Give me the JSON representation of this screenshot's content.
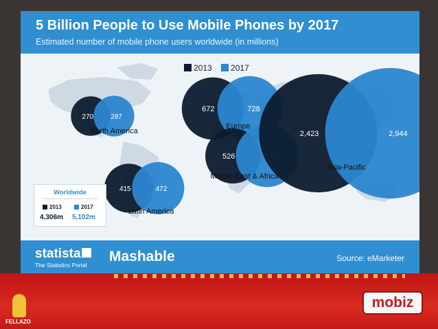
{
  "chart_data": {
    "type": "bubble",
    "title": "5 Billion People to Use Mobile Phones by 2017",
    "subtitle": "Estimated number of mobile phone users worldwide (in millions)",
    "series": [
      {
        "name": "2013",
        "color": "#0c1b2e"
      },
      {
        "name": "2017",
        "color": "#2b86cf"
      }
    ],
    "regions": [
      {
        "name": "North America",
        "values": [
          270,
          287
        ],
        "labels": [
          "270",
          "287"
        ]
      },
      {
        "name": "Europe",
        "values": [
          672,
          728
        ],
        "labels": [
          "672",
          "728"
        ]
      },
      {
        "name": "Middle-East & Africa",
        "values": [
          526,
          671
        ],
        "labels": [
          "526",
          "671"
        ]
      },
      {
        "name": "Asia-Pacific",
        "values": [
          2423,
          2944
        ],
        "labels": [
          "2,423",
          "2,944"
        ]
      },
      {
        "name": "Latin America",
        "values": [
          415,
          472
        ],
        "labels": [
          "415",
          "472"
        ]
      }
    ],
    "worldwide": {
      "title": "Worldwide",
      "labels": [
        "2013",
        "2017"
      ],
      "values": [
        "4,306m",
        "5,102m"
      ]
    }
  },
  "footer": {
    "brand": "statista",
    "brand_sub": "The Statistics Portal",
    "partner": "Mashable",
    "source": "Source: eMarketer"
  },
  "bottom": {
    "logo_right": "mobiz",
    "logo_left": "FELLAZO"
  }
}
